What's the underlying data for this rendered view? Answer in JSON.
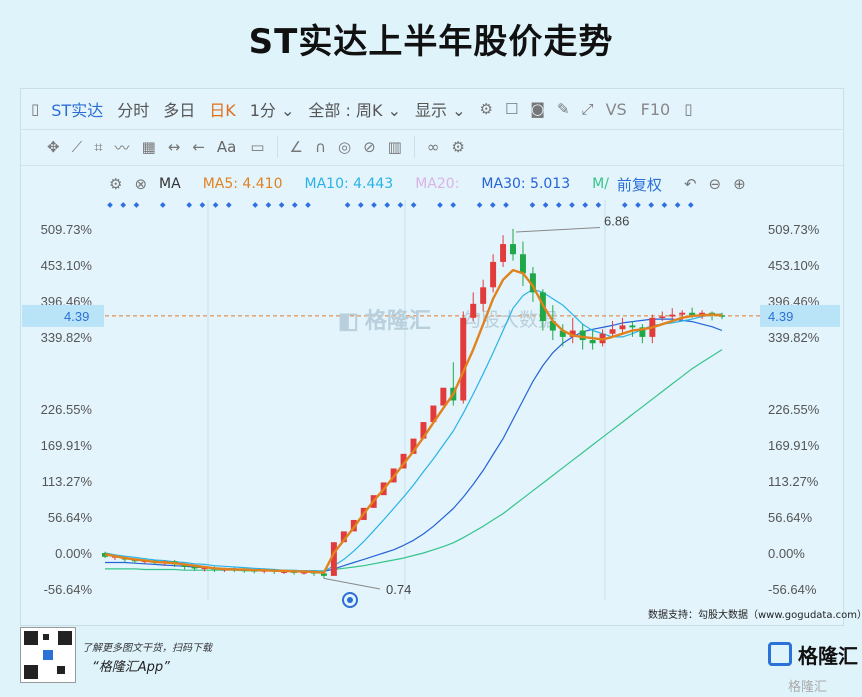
{
  "page_title": "ST实达上半年股价走势",
  "toolbar": {
    "stock_name": "ST实达",
    "items": [
      "分时",
      "多日"
    ],
    "period": "日K",
    "minute": "1分",
    "scope": "全部 : 周K",
    "display": "显示",
    "vs": "VS",
    "f10": "F10"
  },
  "toolbar2": {
    "text_tool": "Aa"
  },
  "indicators": {
    "ma_label": "MA",
    "ma5": "MA5: 4.410",
    "ma10": "MA10: 4.443",
    "ma20": "MA20:",
    "ma30": "MA30: 5.013",
    "ma_more": "M/",
    "adjust": "前复权"
  },
  "colors": {
    "ma5": "#e0821e",
    "ma10": "#2bb3e6",
    "ma20": "#c98fd8",
    "ma30": "#2563d6",
    "ma60": "#36c48a",
    "up": "#e23b3b",
    "down": "#20a848",
    "current": "#e07a2e"
  },
  "watermark": {
    "brand": "格隆汇",
    "sub": "勾股大数据"
  },
  "source": "数据支持：勾股大数据（www.gogudata.com）",
  "footer": {
    "line1": "了解更多图文干货，扫码下载",
    "line2": "“格隆汇App”",
    "brand": "格隆汇",
    "brand_small": "格隆汇"
  },
  "chart_data": {
    "type": "candlestick",
    "y_ticks": [
      "509.73%",
      "453.10%",
      "396.46%",
      "339.82%",
      "226.55%",
      "169.91%",
      "113.27%",
      "56.64%",
      "0.00%",
      "-56.64%"
    ],
    "ylim_pct": [
      -56.64,
      509.73
    ],
    "current_price_label": "4.39",
    "current_price_pct": 373.0,
    "annotations": {
      "high": "6.86",
      "low": "0.74"
    },
    "candles": [
      [
        0,
        -3,
        -6,
        2,
        -8
      ],
      [
        -6,
        -8,
        -5,
        -3,
        -11
      ],
      [
        -8,
        -12,
        -10,
        -5,
        -15
      ],
      [
        -10,
        -13,
        -13,
        -9,
        -16
      ],
      [
        -13,
        -14,
        -12,
        -10,
        -17
      ],
      [
        -12,
        -15,
        -15,
        -11,
        -18
      ],
      [
        -15,
        -16,
        -13,
        -12,
        -20
      ],
      [
        -13,
        -20,
        -18,
        -11,
        -22
      ],
      [
        -18,
        -22,
        -22,
        -16,
        -26
      ],
      [
        -22,
        -25,
        -24,
        -20,
        -28
      ],
      [
        -24,
        -26,
        -23,
        -21,
        -29
      ],
      [
        -23,
        -27,
        -26,
        -21,
        -30
      ],
      [
        -26,
        -27,
        -25,
        -23,
        -30
      ],
      [
        -25,
        -27,
        -26,
        -23,
        -30
      ],
      [
        -26,
        -28,
        -27,
        -24,
        -31
      ],
      [
        -27,
        -29,
        -28,
        -25,
        -32
      ],
      [
        -28,
        -29,
        -27,
        -25,
        -32
      ],
      [
        -27,
        -30,
        -29,
        -25,
        -33
      ],
      [
        -29,
        -30,
        -29,
        -26,
        -33
      ],
      [
        -29,
        -31,
        -30,
        -27,
        -34
      ],
      [
        -30,
        -31,
        -30,
        -28,
        -34
      ],
      [
        -30,
        -33,
        -32,
        -28,
        -36
      ],
      [
        -32,
        -34,
        -36,
        -30,
        -40
      ],
      [
        -36,
        17,
        17,
        17,
        17
      ],
      [
        17,
        34,
        34,
        34,
        34
      ],
      [
        34,
        52,
        52,
        52,
        52
      ],
      [
        52,
        71,
        71,
        71,
        71
      ],
      [
        71,
        91,
        91,
        91,
        91
      ],
      [
        91,
        111,
        111,
        111,
        111
      ],
      [
        111,
        133,
        133,
        133,
        133
      ],
      [
        133,
        156,
        156,
        156,
        156
      ],
      [
        156,
        180,
        180,
        180,
        180
      ],
      [
        180,
        206,
        206,
        206,
        206
      ],
      [
        206,
        232,
        232,
        232,
        232
      ],
      [
        232,
        260,
        260,
        260,
        260
      ],
      [
        260,
        290,
        240,
        300,
        232
      ],
      [
        240,
        370,
        370,
        380,
        235
      ],
      [
        370,
        400,
        392,
        410,
        365
      ],
      [
        392,
        420,
        418,
        430,
        380
      ],
      [
        418,
        460,
        458,
        470,
        410
      ],
      [
        458,
        490,
        486,
        500,
        450
      ],
      [
        486,
        505,
        470,
        510,
        460
      ],
      [
        470,
        480,
        440,
        490,
        420
      ],
      [
        440,
        430,
        410,
        450,
        395
      ],
      [
        410,
        400,
        365,
        415,
        350
      ],
      [
        365,
        380,
        350,
        390,
        335
      ],
      [
        350,
        345,
        340,
        360,
        325
      ],
      [
        340,
        355,
        350,
        370,
        330
      ],
      [
        350,
        345,
        335,
        360,
        320
      ],
      [
        335,
        340,
        330,
        350,
        320
      ],
      [
        330,
        345,
        345,
        352,
        325
      ],
      [
        345,
        350,
        352,
        365,
        340
      ],
      [
        352,
        362,
        358,
        370,
        345
      ],
      [
        358,
        350,
        355,
        365,
        340
      ],
      [
        355,
        348,
        340,
        360,
        330
      ],
      [
        340,
        345,
        370,
        375,
        330
      ],
      [
        370,
        372,
        372,
        380,
        365
      ],
      [
        372,
        378,
        375,
        385,
        368
      ],
      [
        375,
        370,
        378,
        382,
        366
      ],
      [
        378,
        374,
        372,
        386,
        370
      ],
      [
        372,
        376,
        378,
        382,
        368
      ],
      [
        378,
        372,
        374,
        380,
        366
      ],
      [
        374,
        370,
        373,
        378,
        368
      ]
    ],
    "ma5": [
      -2,
      -5,
      -8,
      -10,
      -12,
      -14,
      -15,
      -16,
      -18,
      -20,
      -22,
      -24,
      -25,
      -26,
      -26,
      -27,
      -27,
      -28,
      -28,
      -29,
      -29,
      -30,
      -31,
      0,
      20,
      40,
      62,
      82,
      100,
      120,
      140,
      160,
      182,
      205,
      228,
      250,
      285,
      320,
      360,
      400,
      430,
      445,
      440,
      420,
      390,
      365,
      350,
      342,
      340,
      338,
      336,
      340,
      345,
      350,
      352,
      355,
      360,
      365,
      370,
      373,
      374,
      375,
      374
    ],
    "ma10": [
      0,
      -3,
      -5,
      -7,
      -9,
      -11,
      -12,
      -14,
      -15,
      -17,
      -18,
      -20,
      -21,
      -22,
      -23,
      -24,
      -25,
      -26,
      -27,
      -27,
      -28,
      -28,
      -29,
      -20,
      -10,
      3,
      18,
      35,
      52,
      70,
      88,
      107,
      128,
      148,
      170,
      192,
      220,
      250,
      282,
      315,
      350,
      385,
      405,
      415,
      410,
      400,
      390,
      375,
      360,
      350,
      345,
      340,
      340,
      345,
      352,
      358,
      360,
      362,
      365,
      368,
      372,
      375,
      376
    ],
    "ma30": [
      -15,
      -15,
      -15,
      -16,
      -17,
      -18,
      -19,
      -20,
      -21,
      -22,
      -23,
      -24,
      -25,
      -25,
      -26,
      -26,
      -27,
      -27,
      -27,
      -28,
      -28,
      -28,
      -29,
      -25,
      -20,
      -15,
      -10,
      -5,
      0,
      5,
      12,
      20,
      30,
      42,
      56,
      70,
      88,
      108,
      130,
      155,
      180,
      210,
      240,
      270,
      295,
      315,
      330,
      340,
      348,
      352,
      355,
      358,
      362,
      364,
      366,
      368,
      368,
      368,
      366,
      364,
      360,
      356,
      350
    ],
    "ma60": [
      -25,
      -25,
      -25,
      -25,
      -26,
      -26,
      -26,
      -26,
      -27,
      -27,
      -27,
      -27,
      -27,
      -27,
      -28,
      -28,
      -28,
      -28,
      -28,
      -28,
      -28,
      -28,
      -28,
      -26,
      -24,
      -22,
      -20,
      -17,
      -14,
      -11,
      -8,
      -4,
      0,
      5,
      10,
      16,
      24,
      33,
      42,
      52,
      62,
      74,
      86,
      98,
      110,
      122,
      134,
      146,
      158,
      170,
      182,
      194,
      206,
      218,
      230,
      242,
      254,
      266,
      278,
      290,
      300,
      310,
      320
    ]
  }
}
